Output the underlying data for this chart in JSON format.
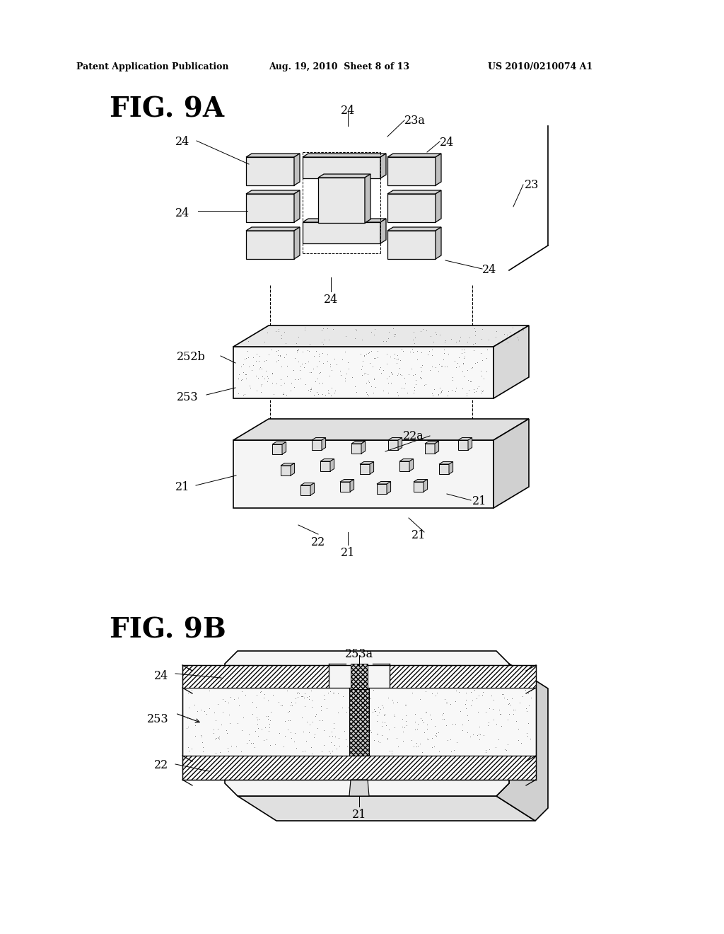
{
  "bg_color": "#ffffff",
  "header_left": "Patent Application Publication",
  "header_mid": "Aug. 19, 2010  Sheet 8 of 13",
  "header_right": "US 2010/0210074 A1",
  "fig9a_label": "FIG. 9A",
  "fig9b_label": "FIG. 9B"
}
